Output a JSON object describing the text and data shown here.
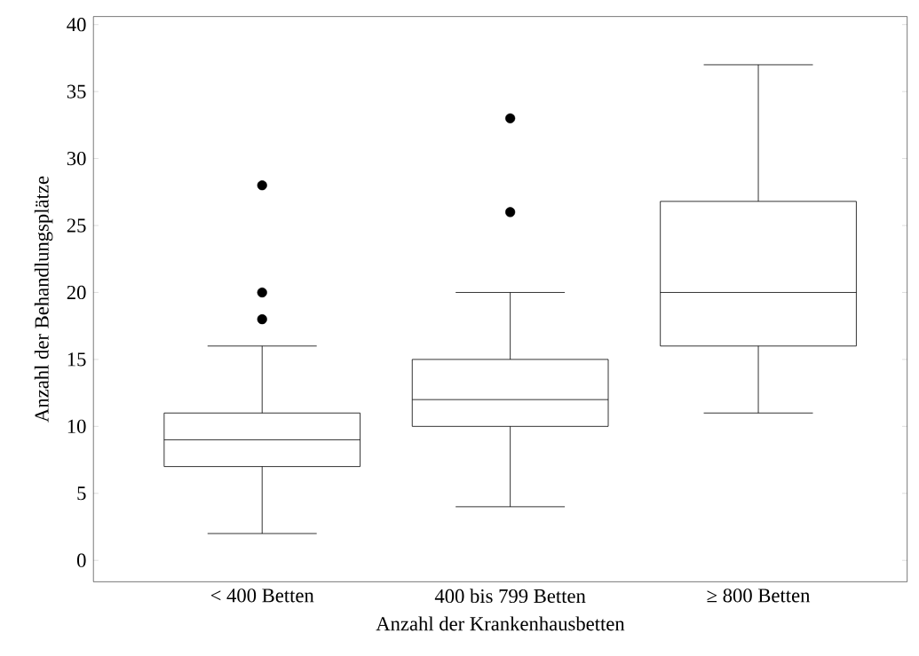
{
  "chart_data": {
    "type": "box",
    "xlabel": "Anzahl der Krankenhausbetten",
    "ylabel": "Anzahl der Behandlungsplätze",
    "categories": [
      "< 400 Betten",
      "400 bis 799 Betten",
      "≥ 800 Betten"
    ],
    "boxes": [
      {
        "low": 2,
        "q1": 7,
        "median": 9,
        "q3": 11,
        "high": 16,
        "outliers": [
          18,
          20,
          28
        ]
      },
      {
        "low": 4,
        "q1": 10,
        "median": 12,
        "q3": 15,
        "high": 20,
        "outliers": [
          26,
          33
        ]
      },
      {
        "low": 11,
        "q1": 16,
        "median": 20,
        "q3": 26.8,
        "high": 37
      }
    ],
    "ylim": [
      -1.6,
      40.6
    ],
    "yticks": [
      0,
      5,
      10,
      15,
      20,
      25,
      30,
      35,
      40
    ]
  }
}
